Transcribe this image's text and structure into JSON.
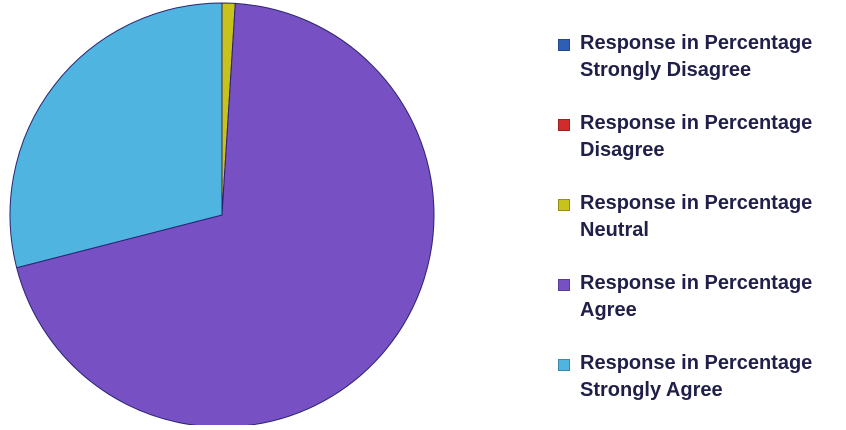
{
  "chart_data": {
    "type": "pie",
    "title": "",
    "legend_position": "right",
    "series_name": "Response in Percentage",
    "categories": [
      "Strongly Disagree",
      "Disagree",
      "Neutral",
      "Agree",
      "Strongly Agree"
    ],
    "values": [
      0,
      0,
      1,
      70,
      29
    ],
    "colors": [
      "#2f5fb5",
      "#d12b2b",
      "#c8c21c",
      "#7750c4",
      "#4fb4e0"
    ],
    "legend": [
      {
        "line1": "Response in Percentage",
        "line2": "Strongly Disagree"
      },
      {
        "line1": "Response in Percentage",
        "line2": "Disagree"
      },
      {
        "line1": "Response in Percentage",
        "line2": "Neutral"
      },
      {
        "line1": "Response in Percentage",
        "line2": "Agree"
      },
      {
        "line1": "Response in Percentage",
        "line2": "Strongly Agree"
      }
    ]
  }
}
